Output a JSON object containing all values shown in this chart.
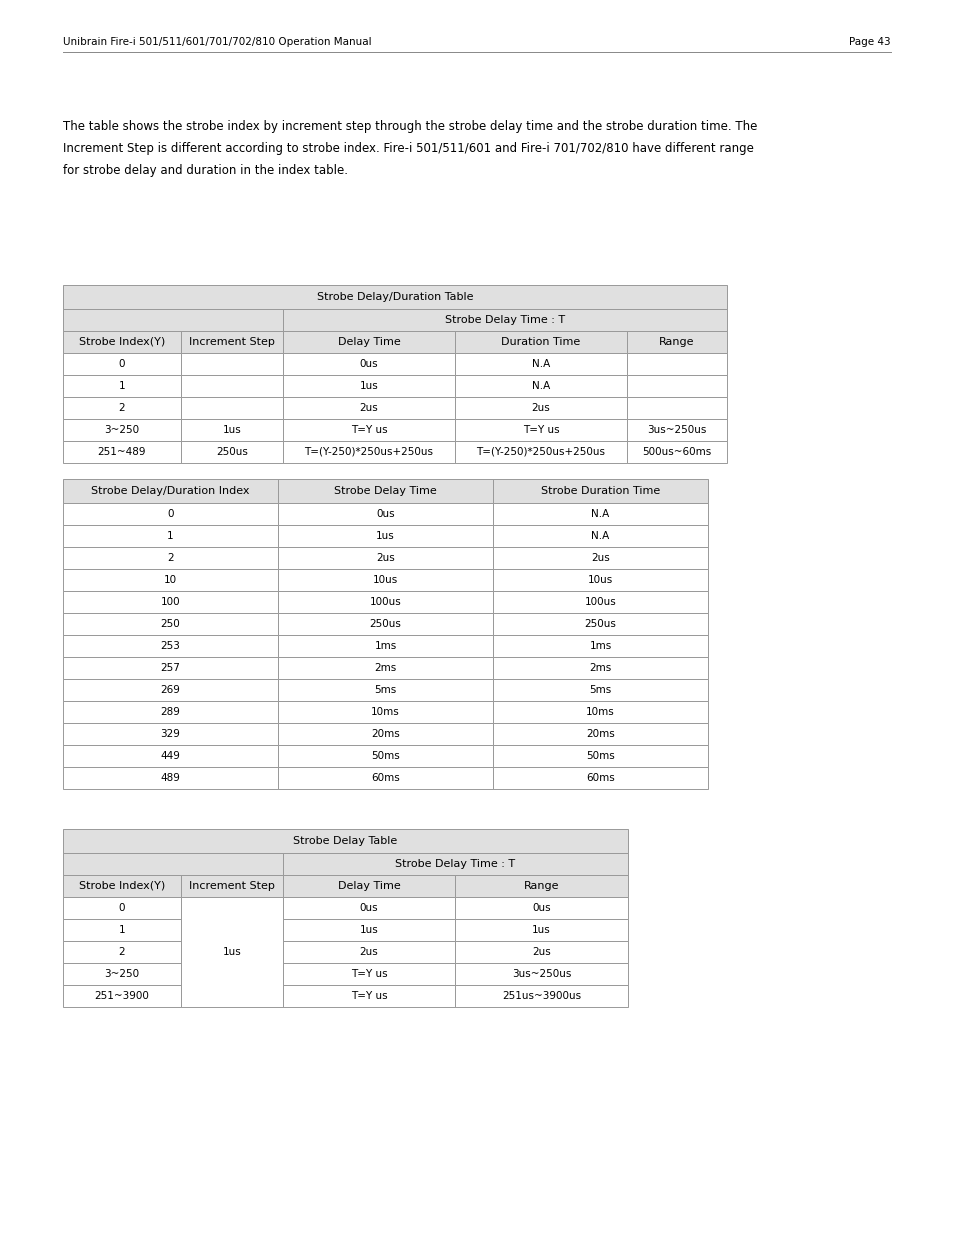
{
  "header_text": "Unibrain Fire-i 501/511/601/701/702/810 Operation Manual",
  "page_text": "Page 43",
  "intro_lines": [
    "The table shows the strobe index by increment step through the strobe delay time and the strobe duration time. The",
    "Increment Step is different according to strobe index. Fire-i 501/511/601 and Fire-i 701/702/810 have different range",
    "for strobe delay and duration in the index table."
  ],
  "table1_title": "Strobe Delay/Duration Table",
  "table1_subheader": "Strobe Delay Time : T",
  "table1_col_headers": [
    "Strobe Index(Y)",
    "Increment Step",
    "Delay Time",
    "Duration Time",
    "Range"
  ],
  "table1_rows": [
    [
      "0",
      "",
      "0us",
      "N.A",
      ""
    ],
    [
      "1",
      "",
      "1us",
      "N.A",
      ""
    ],
    [
      "2",
      "",
      "2us",
      "2us",
      ""
    ],
    [
      "3~250",
      "1us",
      "T=Y us",
      "T=Y us",
      "3us~250us"
    ],
    [
      "251~489",
      "250us",
      "T=(Y-250)*250us+250us",
      "T=(Y-250)*250us+250us",
      "500us~60ms"
    ]
  ],
  "table2_col_headers": [
    "Strobe Delay/Duration Index",
    "Strobe Delay Time",
    "Strobe Duration Time"
  ],
  "table2_rows": [
    [
      "0",
      "0us",
      "N.A"
    ],
    [
      "1",
      "1us",
      "N.A"
    ],
    [
      "2",
      "2us",
      "2us"
    ],
    [
      "10",
      "10us",
      "10us"
    ],
    [
      "100",
      "100us",
      "100us"
    ],
    [
      "250",
      "250us",
      "250us"
    ],
    [
      "253",
      "1ms",
      "1ms"
    ],
    [
      "257",
      "2ms",
      "2ms"
    ],
    [
      "269",
      "5ms",
      "5ms"
    ],
    [
      "289",
      "10ms",
      "10ms"
    ],
    [
      "329",
      "20ms",
      "20ms"
    ],
    [
      "449",
      "50ms",
      "50ms"
    ],
    [
      "489",
      "60ms",
      "60ms"
    ]
  ],
  "table3_title": "Strobe Delay Table",
  "table3_subheader": "Strobe Delay Time : T",
  "table3_col_headers": [
    "Strobe Index(Y)",
    "Increment Step",
    "Delay Time",
    "Range"
  ],
  "table3_rows": [
    [
      "0",
      "1us",
      "0us",
      "0us"
    ],
    [
      "1",
      "1us",
      "1us",
      "1us"
    ],
    [
      "2",
      "1us",
      "2us",
      "2us"
    ],
    [
      "3~250",
      "1us",
      "T=Y us",
      "3us~250us"
    ],
    [
      "251~3900",
      "1us",
      "T=Y us",
      "251us~3900us"
    ]
  ],
  "header_bg": "#e0e0e0",
  "white": "#ffffff",
  "border": "#999999",
  "fs": 8.0,
  "fs_small": 7.5
}
